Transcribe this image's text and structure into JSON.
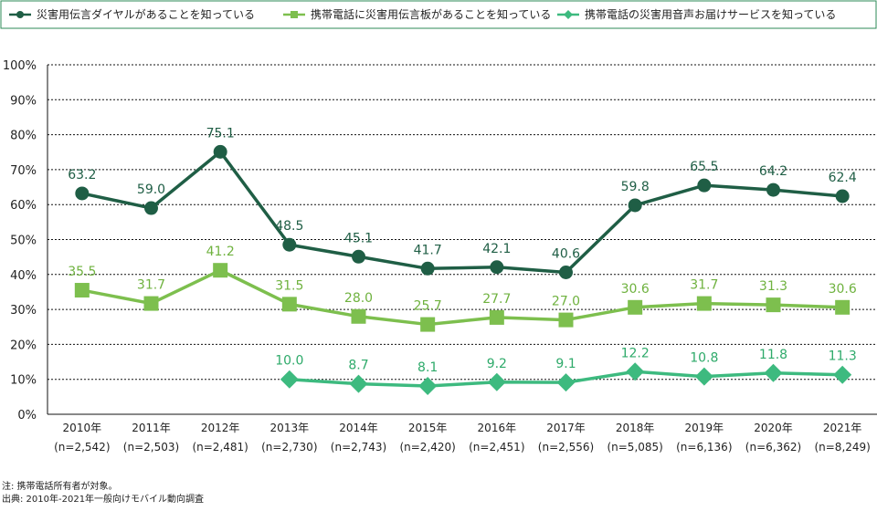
{
  "chart_data": {
    "type": "line",
    "categories": [
      "2010年",
      "2011年",
      "2012年",
      "2013年",
      "2014年",
      "2015年",
      "2016年",
      "2017年",
      "2018年",
      "2019年",
      "2020年",
      "2021年"
    ],
    "sample_sizes": [
      "(n=2,542)",
      "(n=2,503)",
      "(n=2,481)",
      "(n=2,730)",
      "(n=2,743)",
      "(n=2,420)",
      "(n=2,451)",
      "(n=2,556)",
      "(n=5,085)",
      "(n=6,136)",
      "(n=6,362)",
      "(n=8,249)"
    ],
    "y_ticks": [
      "0%",
      "10%",
      "20%",
      "30%",
      "40%",
      "50%",
      "60%",
      "70%",
      "80%",
      "90%",
      "100%"
    ],
    "ylim": [
      0,
      100
    ],
    "grid": true,
    "legend_position": "top",
    "series": [
      {
        "name": "災害用伝言ダイヤルがあることを知っている",
        "marker": "circle",
        "color": "#1f5e45",
        "label_color": "#1f5e45",
        "values": [
          63.2,
          59.0,
          75.1,
          48.5,
          45.1,
          41.7,
          42.1,
          40.6,
          59.8,
          65.5,
          64.2,
          62.4
        ],
        "labels": [
          "63.2",
          "59.0",
          "75.1",
          "48.5",
          "45.1",
          "41.7",
          "42.1",
          "40.6",
          "59.8",
          "65.5",
          "64.2",
          "62.4"
        ]
      },
      {
        "name": "携帯電話に災害用伝言板があることを知っている",
        "marker": "square",
        "color": "#7dbf4e",
        "label_color": "#6fb23f",
        "values": [
          35.5,
          31.7,
          41.2,
          31.5,
          28.0,
          25.7,
          27.7,
          27.0,
          30.6,
          31.7,
          31.3,
          30.6
        ],
        "labels": [
          "35.5",
          "31.7",
          "41.2",
          "31.5",
          "28.0",
          "25.7",
          "27.7",
          "27.0",
          "30.6",
          "31.7",
          "31.3",
          "30.6"
        ]
      },
      {
        "name": "携帯電話の災害用音声お届けサービスを知っている",
        "marker": "diamond",
        "color": "#3dba7f",
        "label_color": "#2eaa6a",
        "values": [
          null,
          null,
          null,
          10.0,
          8.7,
          8.1,
          9.2,
          9.1,
          12.2,
          10.8,
          11.8,
          11.3
        ],
        "labels": [
          null,
          null,
          null,
          "10.0",
          "8.7",
          "8.1",
          "9.2",
          "9.1",
          "12.2",
          "10.8",
          "11.8",
          "11.3"
        ]
      }
    ],
    "notes": [
      "注: 携帯電話所有者が対象。",
      "出典: 2010年-2021年一般向けモバイル動向調査"
    ]
  }
}
